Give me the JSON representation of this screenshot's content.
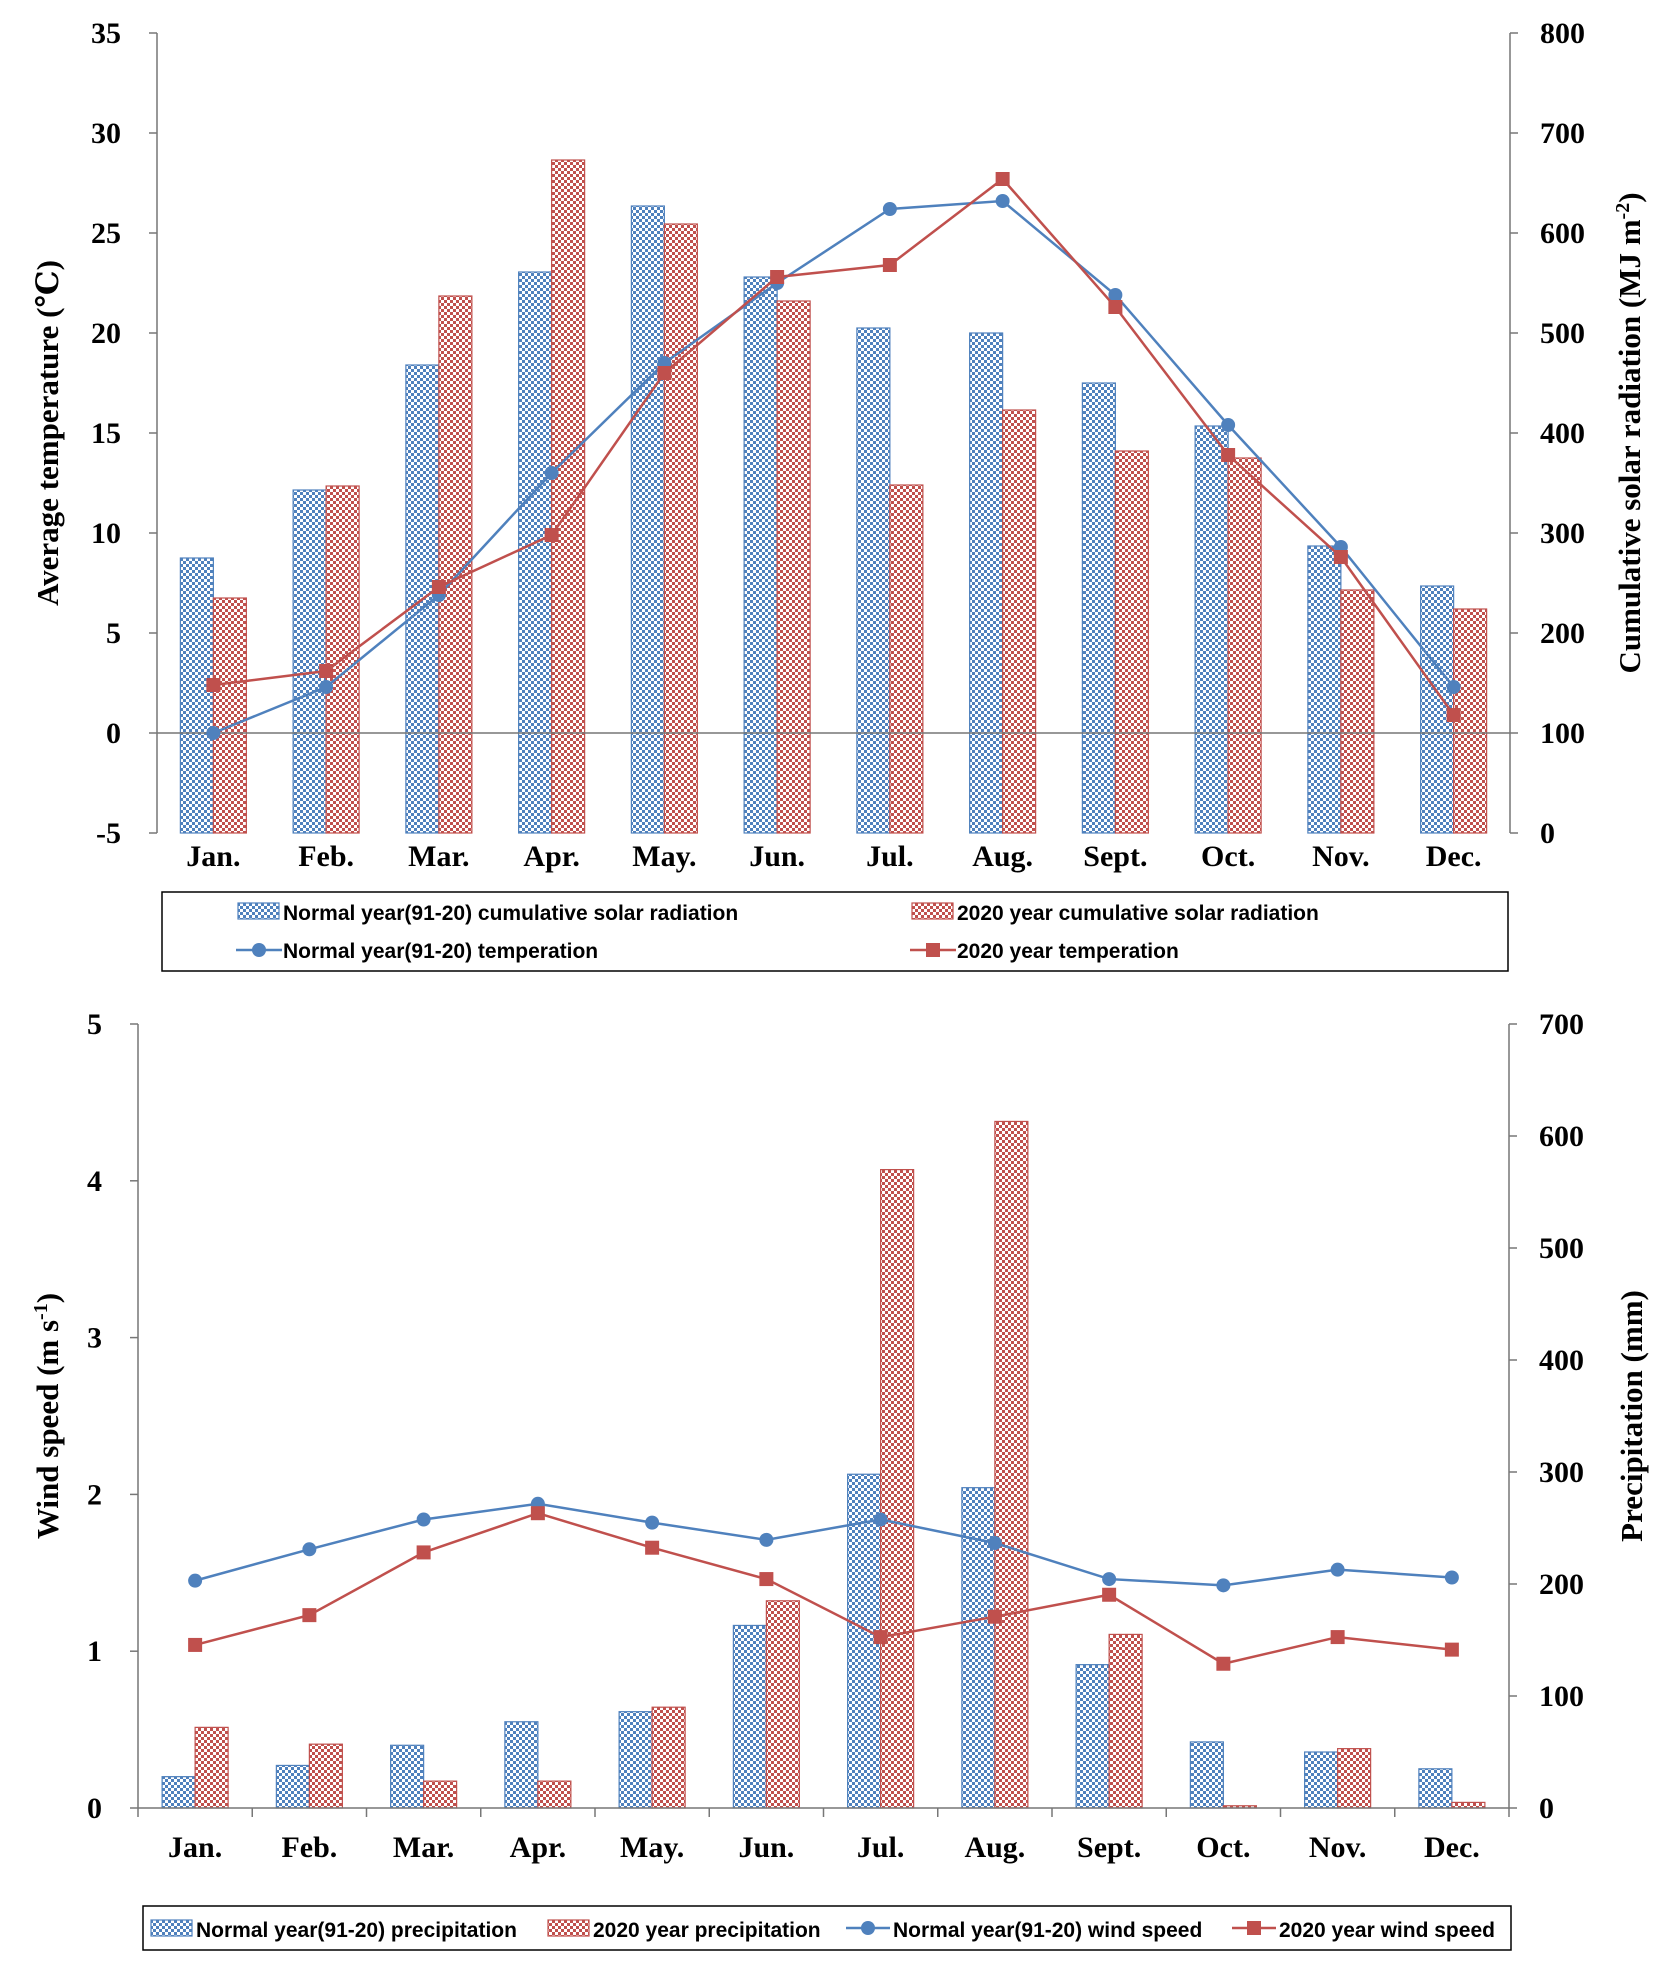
{
  "chart_data": [
    {
      "type": "bar+line",
      "categories": [
        "Jan.",
        "Feb.",
        "Mar.",
        "Apr.",
        "May.",
        "Jun.",
        "Jul.",
        "Aug.",
        "Sept.",
        "Oct.",
        "Nov.",
        "Dec."
      ],
      "ylabel_left": "Average temperature (℃)",
      "ylabel_right_main": "Cumulative solar radiation (MJ m",
      "ylabel_right_sup": "-2",
      "ylabel_right_end": ")",
      "ylim_left": [
        -5,
        35
      ],
      "yticks_left": [
        "-5",
        "0",
        "5",
        "10",
        "15",
        "20",
        "25",
        "30",
        "35"
      ],
      "ylim_right": [
        0,
        800
      ],
      "yticks_right": [
        "0",
        "100",
        "200",
        "300",
        "400",
        "500",
        "600",
        "700",
        "800"
      ],
      "bar_series": [
        {
          "name": "Normal year(91-20) cumulative solar radiation",
          "axis": "right",
          "color": "#4f81bd",
          "values": [
            275,
            343,
            468,
            561,
            627,
            556,
            505,
            500,
            450,
            407,
            287,
            247
          ]
        },
        {
          "name": "2020 year cumulative solar radiation",
          "axis": "right",
          "color": "#c0504d",
          "values": [
            235,
            347,
            537,
            673,
            609,
            532,
            348,
            423,
            382,
            375,
            243,
            224
          ]
        }
      ],
      "line_series": [
        {
          "name": "Normal year(91-20) temperation",
          "axis": "left",
          "color": "#4f81bd",
          "marker": "circle",
          "values": [
            0.0,
            2.3,
            6.9,
            13.0,
            18.5,
            22.5,
            26.2,
            26.6,
            21.9,
            15.4,
            9.3,
            2.3
          ]
        },
        {
          "name": "2020 year temperation",
          "axis": "left",
          "color": "#c0504d",
          "marker": "square",
          "values": [
            2.4,
            3.1,
            7.3,
            9.9,
            18.0,
            22.8,
            23.4,
            27.7,
            21.3,
            13.9,
            8.8,
            0.9
          ]
        }
      ],
      "legend_location": "below",
      "legend_labels": [
        "Normal year(91-20) cumulative solar radiation",
        "2020 year cumulative solar radiation",
        "Normal year(91-20) temperation",
        "2020 year temperation"
      ]
    },
    {
      "type": "bar+line",
      "categories": [
        "Jan.",
        "Feb.",
        "Mar.",
        "Apr.",
        "May.",
        "Jun.",
        "Jul.",
        "Aug.",
        "Sept.",
        "Oct.",
        "Nov.",
        "Dec."
      ],
      "ylabel_left_main": "Wind speed (m s",
      "ylabel_left_sup": "-1",
      "ylabel_left_end": ")",
      "ylabel_right": "Precipitation (mm)",
      "ylim_left": [
        0,
        5
      ],
      "yticks_left": [
        "0",
        "1",
        "2",
        "3",
        "4",
        "5"
      ],
      "ylim_right": [
        0,
        700
      ],
      "yticks_right": [
        "0",
        "100",
        "200",
        "300",
        "400",
        "500",
        "600",
        "700"
      ],
      "bar_series": [
        {
          "name": "Normal year(91-20) precipitation",
          "axis": "right",
          "color": "#4f81bd",
          "values": [
            28,
            38,
            56,
            77,
            86,
            163,
            298,
            286,
            128,
            59,
            50,
            35
          ]
        },
        {
          "name": "2020 year precipitation",
          "axis": "right",
          "color": "#c0504d",
          "values": [
            72,
            57,
            24,
            24,
            90,
            185,
            570,
            613,
            155,
            2,
            53,
            5
          ]
        }
      ],
      "line_series": [
        {
          "name": "Normal year(91-20) wind speed",
          "axis": "left",
          "color": "#4f81bd",
          "marker": "circle",
          "values": [
            1.45,
            1.65,
            1.84,
            1.94,
            1.82,
            1.71,
            1.84,
            1.69,
            1.46,
            1.42,
            1.52,
            1.47
          ]
        },
        {
          "name": "2020 year wind speed",
          "axis": "left",
          "color": "#c0504d",
          "marker": "square",
          "values": [
            1.04,
            1.23,
            1.63,
            1.88,
            1.66,
            1.46,
            1.09,
            1.22,
            1.36,
            0.92,
            1.09,
            1.01
          ]
        }
      ],
      "legend_location": "below",
      "legend_labels": [
        "Normal year(91-20) precipitation",
        "2020 year precipitation",
        "Normal year(91-20) wind speed",
        "2020 year wind speed"
      ]
    }
  ]
}
